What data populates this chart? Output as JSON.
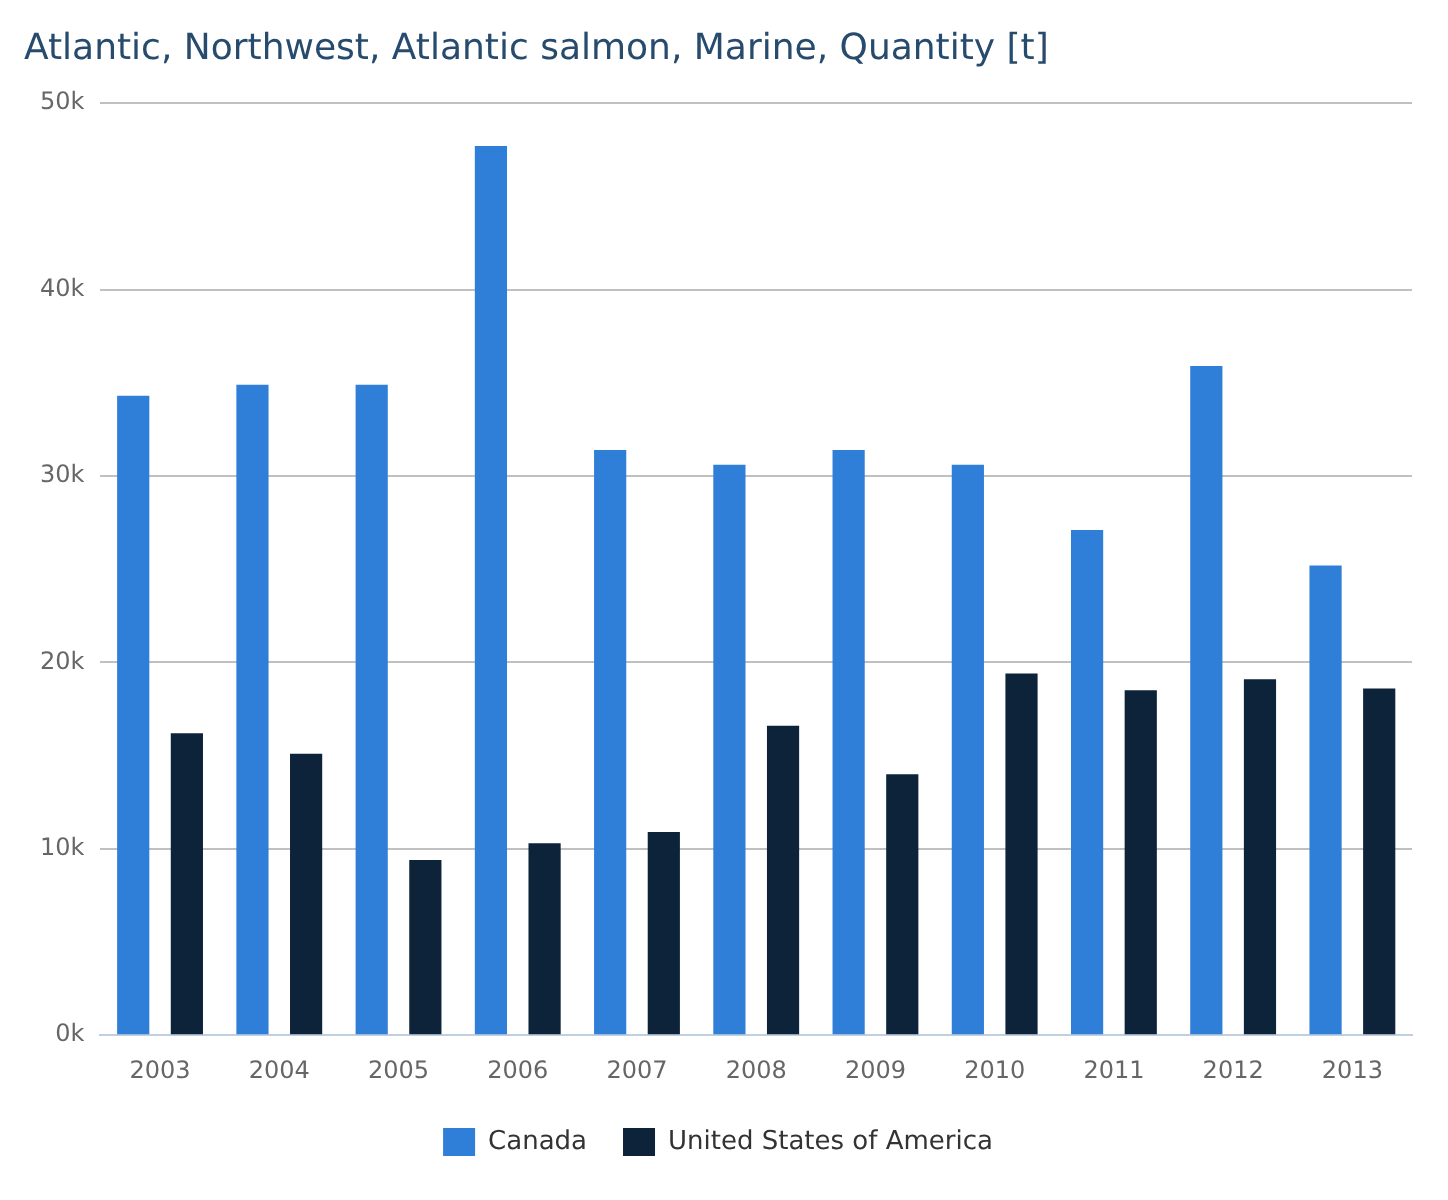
{
  "chart_data": {
    "type": "bar",
    "title": "Atlantic, Northwest, Atlantic salmon, Marine, Quantity [t]",
    "categories": [
      "2003",
      "2004",
      "2005",
      "2006",
      "2007",
      "2008",
      "2009",
      "2010",
      "2011",
      "2012",
      "2013"
    ],
    "series": [
      {
        "name": "Canada",
        "color": "#2f7ed8",
        "values": [
          34300,
          34900,
          34900,
          47700,
          31400,
          30600,
          31400,
          30600,
          27100,
          35900,
          25200
        ]
      },
      {
        "name": "United States of America",
        "color": "#0d233a",
        "values": [
          16200,
          15100,
          9400,
          10300,
          10900,
          16600,
          14000,
          19400,
          18500,
          19100,
          18600
        ]
      }
    ],
    "ylim": [
      0,
      50000
    ],
    "yticks": [
      {
        "value": 0,
        "label": "0k"
      },
      {
        "value": 10000,
        "label": "10k"
      },
      {
        "value": 20000,
        "label": "20k"
      },
      {
        "value": 30000,
        "label": "30k"
      },
      {
        "value": 40000,
        "label": "40k"
      },
      {
        "value": 50000,
        "label": "50k"
      }
    ],
    "grid": "y",
    "legend": "bottom"
  }
}
